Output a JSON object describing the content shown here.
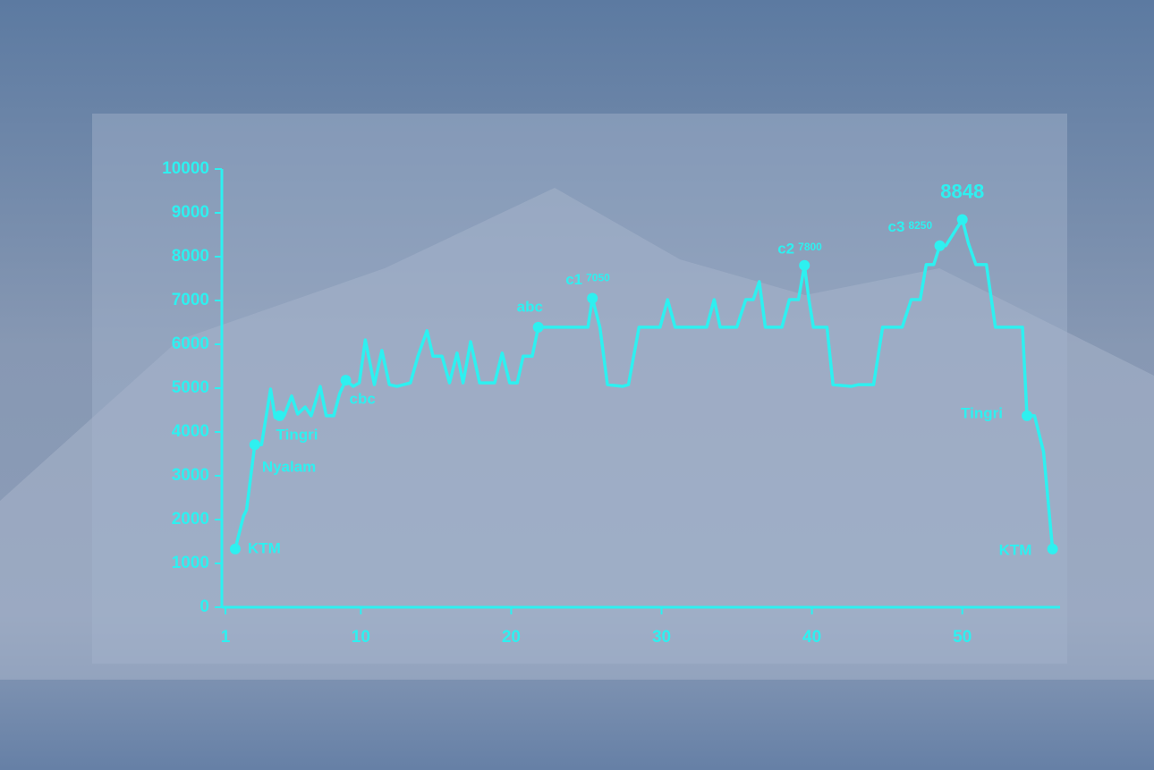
{
  "chart_data": {
    "type": "line",
    "color": "#2ef0f0",
    "x": [
      1.65,
      2.2,
      2.4,
      2.95,
      3.4,
      4.0,
      4.3,
      4.6,
      4.9,
      5.4,
      5.8,
      6.3,
      6.7,
      7.3,
      7.7,
      8.2,
      8.6,
      9.0,
      9.5,
      9.9,
      10.3,
      10.9,
      11.4,
      11.9,
      12.4,
      13.3,
      13.8,
      14.4,
      14.8,
      15.4,
      15.9,
      16.4,
      16.8,
      17.3,
      17.9,
      18.9,
      19.4,
      19.9,
      20.4,
      20.8,
      21.4,
      21.8,
      25.1,
      25.4,
      25.9,
      26.4,
      27.4,
      27.8,
      28.5,
      29.9,
      30.4,
      30.9,
      33.0,
      33.5,
      33.9,
      35.0,
      35.6,
      36.1,
      36.5,
      36.9,
      38.0,
      38.5,
      39.1,
      39.5,
      39.8,
      40.1,
      41.0,
      41.4,
      42.6,
      43.1,
      44.1,
      44.7,
      46.0,
      46.6,
      47.2,
      47.6,
      48.1,
      48.5,
      48.9,
      50.0,
      50.4,
      50.9,
      51.6,
      52.2,
      54.0,
      54.3,
      54.8,
      55.4,
      56.0
    ],
    "values": [
      1330,
      2080,
      2220,
      3710,
      3710,
      4980,
      4330,
      4370,
      4370,
      4820,
      4410,
      4570,
      4370,
      5040,
      4370,
      4370,
      4880,
      5180,
      5040,
      5120,
      6100,
      5080,
      5860,
      5080,
      5040,
      5120,
      5730,
      6310,
      5730,
      5730,
      5120,
      5800,
      5120,
      6060,
      5120,
      5120,
      5800,
      5120,
      5120,
      5730,
      5730,
      6390,
      6390,
      7050,
      6390,
      5080,
      5040,
      5080,
      6390,
      6390,
      7020,
      6390,
      6390,
      7020,
      6390,
      6390,
      7020,
      7020,
      7430,
      6390,
      6390,
      7020,
      7020,
      7800,
      7020,
      6390,
      6390,
      5080,
      5040,
      5080,
      5080,
      6390,
      6390,
      7020,
      7020,
      7820,
      7820,
      8250,
      8250,
      8848,
      8310,
      7820,
      7820,
      6390,
      6390,
      4370,
      4370,
      3550,
      1330
    ],
    "markers": [
      {
        "label": "KTM",
        "x": 1.65,
        "y": 1330
      },
      {
        "label": "Nyalam",
        "x": 2.95,
        "y": 3710
      },
      {
        "label": "Tingri",
        "x": 4.6,
        "y": 4370
      },
      {
        "label": "cbc",
        "x": 9.0,
        "y": 5180
      },
      {
        "label": "abc",
        "x": 21.8,
        "y": 6390
      },
      {
        "label": "c1",
        "value_label": "7050",
        "x": 25.4,
        "y": 7050
      },
      {
        "label": "c2",
        "value_label": "7800",
        "x": 39.5,
        "y": 7800
      },
      {
        "label": "c3",
        "value_label": "8250",
        "x": 48.5,
        "y": 8250
      },
      {
        "value_label": "8848",
        "x": 50.0,
        "y": 8848
      },
      {
        "label": "Tingri",
        "x": 54.3,
        "y": 4370
      },
      {
        "label": "KTM",
        "x": 56.0,
        "y": 1330
      }
    ],
    "xlim": [
      0.76,
      56.5
    ],
    "xticks": [
      1,
      10,
      20,
      30,
      40,
      50
    ],
    "ylim": [
      0,
      10000
    ],
    "yticks": [
      0,
      1000,
      2000,
      3000,
      4000,
      5000,
      6000,
      7000,
      8000,
      9000,
      10000
    ]
  }
}
